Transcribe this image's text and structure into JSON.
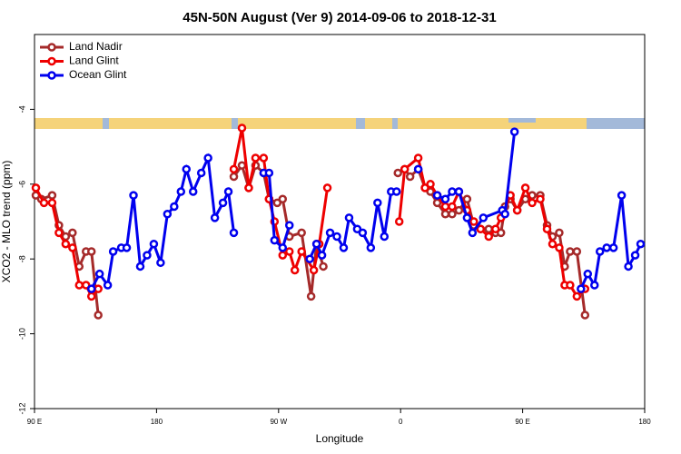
{
  "chart_data": {
    "type": "line",
    "title": "45N-50N August (Ver 9)   2014-09-06 to 2018-12-31",
    "x_label": "Longitude",
    "y_label": "XCO2 - MLO trend (ppm)",
    "xlim": [
      90,
      540
    ],
    "xticks": [
      {
        "value": 90,
        "label": "90 E"
      },
      180,
      {
        "value": 270,
        "label": "90 W"
      },
      {
        "value": 360,
        "label": "0"
      },
      {
        "value": 450,
        "label": "90 E"
      },
      {
        "value": 540,
        "label": "180"
      }
    ],
    "ylim": [
      -12,
      -2
    ],
    "yticks": [
      -12,
      -10,
      -8,
      -6,
      -4
    ],
    "legend": "top-left",
    "series": [
      {
        "name": "Land Nadir",
        "color": "#a52a2a",
        "x": [
          91,
          95,
          103,
          108,
          113,
          118,
          123,
          128,
          132,
          137,
          null,
          237,
          243,
          248,
          253,
          259,
          263,
          269,
          273,
          278,
          287,
          294,
          298,
          303,
          null,
          358,
          363,
          367,
          373,
          378,
          382,
          387,
          393,
          398,
          403,
          409,
          414,
          419,
          425,
          430,
          434,
          437,
          441,
          446,
          452,
          457,
          463,
          468,
          472,
          477,
          481,
          485,
          490,
          496
        ],
        "values": [
          -6.3,
          -6.4,
          -6.3,
          -7.1,
          -7.4,
          -7.3,
          -8.2,
          -7.8,
          -7.8,
          -9.5,
          null,
          -5.8,
          -5.5,
          -6.1,
          -5.5,
          -5.7,
          -6.4,
          -6.5,
          -6.4,
          -7.4,
          -7.3,
          -9.0,
          -7.6,
          -8.2,
          null,
          -5.7,
          -5.6,
          -5.8,
          -5.6,
          -6.1,
          -6.2,
          -6.5,
          -6.8,
          -6.8,
          -6.7,
          -6.4,
          -7.1,
          -7.2,
          -7.2,
          -7.3,
          -7.3,
          -6.6,
          -6.4,
          -6.7,
          -6.4,
          -6.3,
          -6.3,
          -7.1,
          -7.4,
          -7.3,
          -8.2,
          -7.8,
          -7.8,
          -9.5
        ]
      },
      {
        "name": "Land Glint",
        "color": "#ee0000",
        "x": [
          91,
          97,
          103,
          108,
          113,
          118,
          123,
          128,
          132,
          137,
          null,
          237,
          243,
          248,
          253,
          259,
          263,
          267,
          273,
          278,
          282,
          287,
          296,
          300,
          306,
          null,
          359,
          363,
          373,
          378,
          382,
          387,
          393,
          398,
          403,
          409,
          414,
          419,
          425,
          430,
          434,
          441,
          446,
          452,
          457,
          463,
          468,
          472,
          477,
          481,
          485,
          490,
          496
        ],
        "values": [
          -6.1,
          -6.5,
          -6.5,
          -7.3,
          -7.6,
          -7.7,
          -8.7,
          -8.7,
          -9.0,
          -8.8,
          null,
          -5.6,
          -4.5,
          -6.1,
          -5.3,
          -5.3,
          -6.4,
          -7.0,
          -7.9,
          -7.8,
          -8.3,
          -7.8,
          -8.3,
          -7.6,
          -6.1,
          null,
          -7.0,
          -5.6,
          -5.3,
          -6.1,
          -6.0,
          -6.3,
          -6.6,
          -6.6,
          -6.2,
          -6.7,
          -7.0,
          -7.2,
          -7.4,
          -7.2,
          -6.9,
          -6.3,
          -6.7,
          -6.1,
          -6.5,
          -6.4,
          -7.2,
          -7.6,
          -7.7,
          -8.7,
          -8.7,
          -9.0,
          -8.8
        ]
      },
      {
        "name": "Ocean Glint",
        "color": "#0000ee",
        "x": [
          132,
          138,
          144,
          148,
          154,
          158,
          163,
          168,
          173,
          178,
          183,
          188,
          193,
          198,
          202,
          207,
          213,
          218,
          223,
          229,
          233,
          237,
          null,
          259,
          263,
          267,
          273,
          278,
          null,
          293,
          298,
          302,
          308,
          313,
          318,
          322,
          328,
          332,
          338,
          343,
          348,
          353,
          357,
          null,
          373,
          null,
          387,
          393,
          398,
          403,
          409,
          413,
          421,
          435,
          437,
          444,
          null,
          493,
          498,
          503,
          507,
          512,
          517,
          523,
          528,
          533,
          537
        ],
        "values": [
          -8.8,
          -8.4,
          -8.7,
          -7.8,
          -7.7,
          -7.7,
          -6.3,
          -8.2,
          -7.9,
          -7.6,
          -8.1,
          -6.8,
          -6.6,
          -6.2,
          -5.6,
          -6.2,
          -5.7,
          -5.3,
          -6.9,
          -6.5,
          -6.2,
          -7.3,
          null,
          -5.7,
          -5.7,
          -7.5,
          -7.7,
          -7.1,
          null,
          -8.0,
          -7.6,
          -7.9,
          -7.3,
          -7.4,
          -7.7,
          -6.9,
          -7.2,
          -7.3,
          -7.7,
          -6.5,
          -7.4,
          -6.2,
          -6.2,
          null,
          -5.6,
          null,
          -6.3,
          -6.4,
          -6.2,
          -6.2,
          -6.9,
          -7.3,
          -6.9,
          -6.7,
          -6.8,
          -4.6,
          null,
          -8.8,
          -8.4,
          -8.7,
          -7.8,
          -7.7,
          -7.7,
          -6.3,
          -8.2,
          -7.9,
          -7.6
        ]
      }
    ]
  }
}
